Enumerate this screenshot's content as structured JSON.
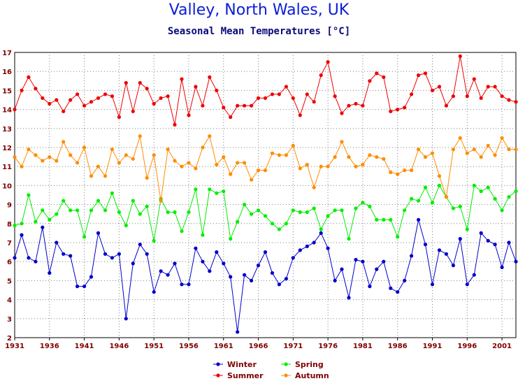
{
  "chart_data": {
    "type": "line",
    "title": "Valley, North Wales, UK",
    "subtitle": "Seasonal Mean Temperatures [°C]",
    "xlabel": "",
    "ylabel": "",
    "xlim": [
      1931,
      2003
    ],
    "ylim": [
      2,
      17
    ],
    "x_ticks": [
      "1931",
      "1936",
      "1941",
      "1946",
      "1951",
      "1956",
      "1961",
      "1966",
      "1971",
      "1976",
      "1981",
      "1986",
      "1991",
      "1996",
      "2001"
    ],
    "y_ticks": [
      "2",
      "3",
      "4",
      "5",
      "6",
      "7",
      "8",
      "9",
      "10",
      "11",
      "12",
      "13",
      "14",
      "15",
      "16",
      "17"
    ],
    "grid": true,
    "legend_position": "bottom",
    "x": [
      1931,
      1932,
      1933,
      1934,
      1935,
      1936,
      1937,
      1938,
      1939,
      1940,
      1941,
      1942,
      1943,
      1944,
      1945,
      1946,
      1947,
      1948,
      1949,
      1950,
      1951,
      1952,
      1953,
      1954,
      1955,
      1956,
      1957,
      1958,
      1959,
      1960,
      1961,
      1962,
      1963,
      1964,
      1965,
      1966,
      1967,
      1968,
      1969,
      1970,
      1971,
      1972,
      1973,
      1974,
      1975,
      1976,
      1977,
      1978,
      1979,
      1980,
      1981,
      1982,
      1983,
      1984,
      1985,
      1986,
      1987,
      1988,
      1989,
      1990,
      1991,
      1992,
      1993,
      1994,
      1995,
      1996,
      1997,
      1998,
      1999,
      2000,
      2001,
      2002,
      2003
    ],
    "series": [
      {
        "name": "Winter",
        "color": "#0000cc",
        "values": [
          6.2,
          7.4,
          6.2,
          6.0,
          7.8,
          5.4,
          7.0,
          6.4,
          6.3,
          4.7,
          4.7,
          5.2,
          7.5,
          6.4,
          6.2,
          6.4,
          3.0,
          5.9,
          6.9,
          6.4,
          4.4,
          5.5,
          5.3,
          5.9,
          4.8,
          4.8,
          6.7,
          6.0,
          5.5,
          6.5,
          5.9,
          5.2,
          2.3,
          5.3,
          5.0,
          5.8,
          6.5,
          5.4,
          4.8,
          5.1,
          6.2,
          6.6,
          6.8,
          7.0,
          7.5,
          6.7,
          5.0,
          5.6,
          4.1,
          6.1,
          6.0,
          4.7,
          5.6,
          6.0,
          4.6,
          4.4,
          5.0,
          6.3,
          8.2,
          6.9,
          4.8,
          6.6,
          6.4,
          5.8,
          7.2,
          4.8,
          5.3,
          7.5,
          7.1,
          6.9,
          5.7,
          7.0,
          6.0
        ]
      },
      {
        "name": "Spring",
        "color": "#00ee00",
        "values": [
          7.9,
          8.0,
          9.5,
          8.1,
          8.7,
          8.2,
          8.5,
          9.2,
          8.7,
          8.7,
          7.3,
          8.7,
          9.2,
          8.7,
          9.6,
          8.6,
          7.9,
          9.2,
          8.5,
          8.9,
          7.1,
          9.3,
          8.6,
          8.6,
          7.6,
          8.6,
          9.8,
          7.4,
          9.8,
          9.6,
          9.7,
          7.2,
          8.1,
          9.0,
          8.5,
          8.7,
          8.4,
          8.0,
          7.7,
          8.0,
          8.7,
          8.6,
          8.6,
          8.8,
          7.7,
          8.4,
          8.7,
          8.7,
          7.2,
          8.8,
          9.1,
          8.9,
          8.2,
          8.2,
          8.2,
          7.3,
          8.7,
          9.3,
          9.2,
          9.9,
          9.1,
          10.0,
          9.4,
          8.8,
          8.9,
          7.7,
          10.0,
          9.7,
          9.9,
          9.3,
          8.7,
          9.4,
          9.7
        ]
      },
      {
        "name": "Summer",
        "color": "#ee0000",
        "values": [
          14.0,
          15.0,
          15.7,
          15.1,
          14.6,
          14.3,
          14.5,
          13.9,
          14.5,
          14.8,
          14.2,
          14.4,
          14.6,
          14.8,
          14.7,
          13.6,
          15.4,
          13.9,
          15.4,
          15.1,
          14.3,
          14.6,
          14.7,
          13.2,
          15.6,
          13.7,
          15.2,
          14.2,
          15.7,
          15.0,
          14.1,
          13.6,
          14.2,
          14.2,
          14.2,
          14.6,
          14.6,
          14.8,
          14.8,
          15.2,
          14.6,
          13.7,
          14.8,
          14.4,
          15.8,
          16.5,
          14.7,
          13.8,
          14.2,
          14.3,
          14.2,
          15.5,
          15.9,
          15.7,
          13.9,
          14.0,
          14.1,
          14.8,
          15.8,
          15.9,
          15.0,
          15.2,
          14.2,
          14.7,
          16.8,
          14.7,
          15.6,
          14.6,
          15.2,
          15.2,
          14.7,
          14.5,
          14.4
        ]
      },
      {
        "name": "Autumn",
        "color": "#ff8c00",
        "values": [
          11.5,
          11.0,
          11.9,
          11.6,
          11.3,
          11.5,
          11.3,
          12.3,
          11.6,
          11.2,
          12.0,
          10.5,
          11.0,
          10.5,
          11.9,
          11.2,
          11.6,
          11.4,
          12.6,
          10.4,
          11.6,
          9.2,
          11.9,
          11.3,
          11.0,
          11.2,
          10.9,
          12.0,
          12.6,
          11.1,
          11.5,
          10.6,
          11.2,
          11.2,
          10.3,
          10.8,
          10.8,
          11.7,
          11.6,
          11.6,
          12.1,
          10.9,
          11.1,
          9.9,
          11.0,
          11.0,
          11.5,
          12.3,
          11.5,
          11.0,
          11.1,
          11.6,
          11.5,
          11.4,
          10.7,
          10.6,
          10.8,
          10.8,
          11.9,
          11.5,
          11.7,
          10.5,
          9.4,
          11.9,
          12.5,
          11.7,
          11.9,
          11.5,
          12.1,
          11.6,
          12.5,
          11.9,
          11.9
        ]
      }
    ]
  }
}
